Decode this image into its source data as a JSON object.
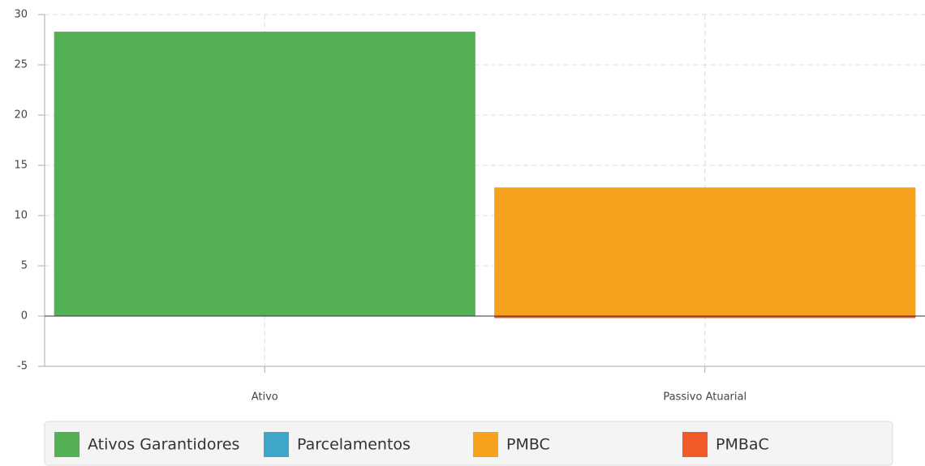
{
  "chart_data": {
    "type": "stacked_bar",
    "categories": [
      "Ativo",
      "Passivo Atuarial"
    ],
    "series": [
      {
        "name": "Ativos Garantidores",
        "color": "#53b054",
        "values": [
          28.3,
          0
        ]
      },
      {
        "name": "Parcelamentos",
        "color": "#3ea6c8",
        "values": [
          0,
          0
        ]
      },
      {
        "name": "PMBC",
        "color": "#f6a21c",
        "values": [
          0,
          12.8
        ]
      },
      {
        "name": "PMBaC",
        "color": "#f05a28",
        "values": [
          0,
          -0.2
        ]
      }
    ],
    "ylim": [
      -5,
      30
    ],
    "yticks": [
      -5,
      0,
      5,
      10,
      15,
      20,
      25,
      30
    ],
    "grid": true,
    "legend": "bottom"
  }
}
